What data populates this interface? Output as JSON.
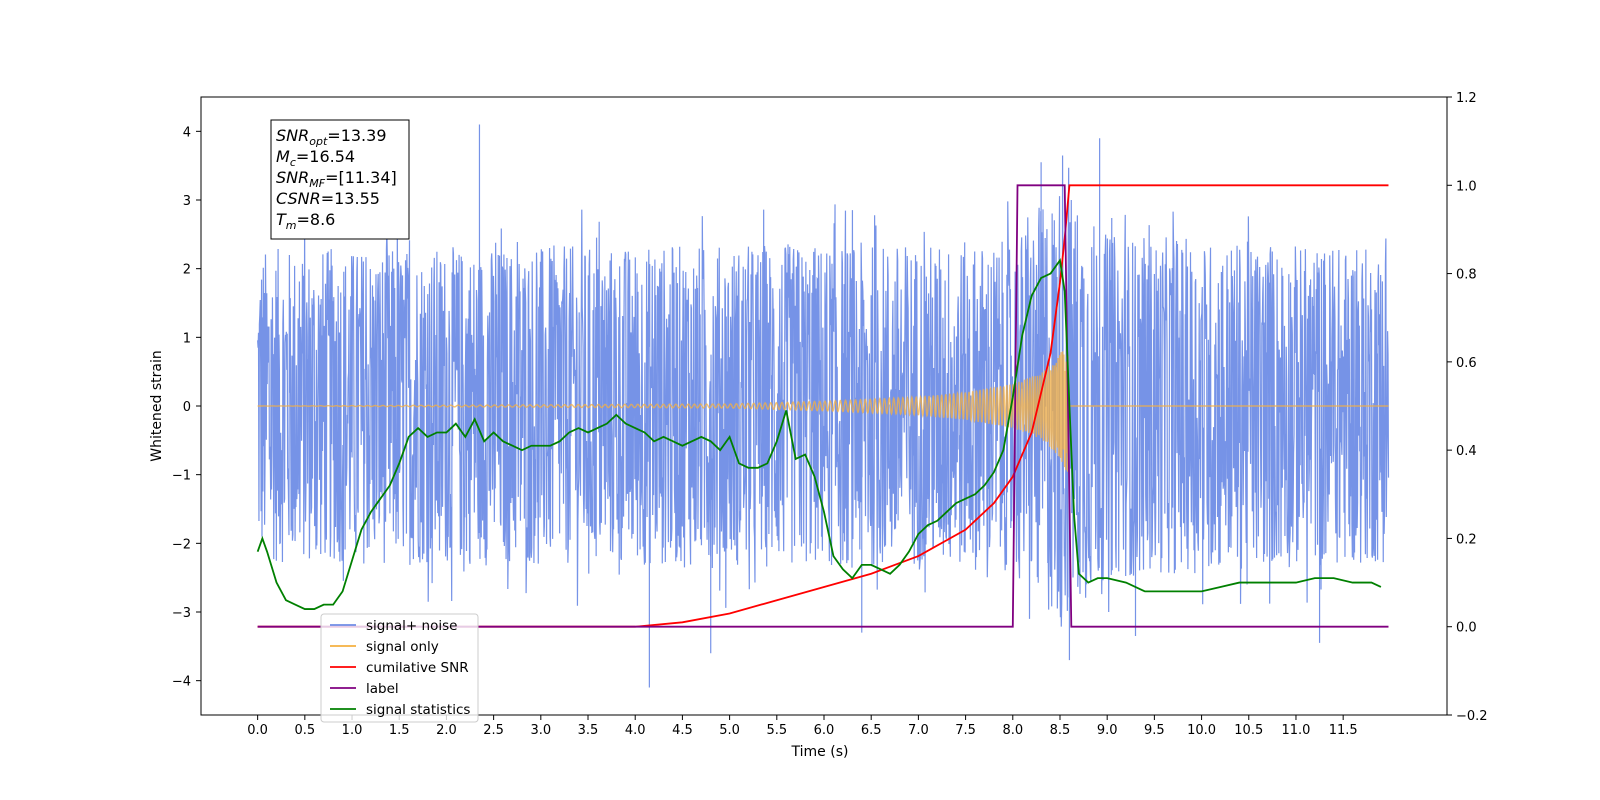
{
  "chart_data": {
    "type": "line",
    "xlabel": "Time (s)",
    "ylabel": "Whitened strain",
    "xlim": [
      -0.6,
      12.6
    ],
    "ylim": [
      -4.5,
      4.5
    ],
    "y2lim": [
      -0.2,
      1.2
    ],
    "x_ticks": [
      0.0,
      0.5,
      1.0,
      1.5,
      2.0,
      2.5,
      3.0,
      3.5,
      4.0,
      4.5,
      5.0,
      5.5,
      6.0,
      6.5,
      7.0,
      7.5,
      8.0,
      8.5,
      9.0,
      9.5,
      10.0,
      10.5,
      11.0,
      11.5
    ],
    "x_tick_labels": [
      "0.0",
      "0.5",
      "1.0",
      "1.5",
      "2.0",
      "2.5",
      "3.0",
      "3.5",
      "4.0",
      "4.5",
      "5.0",
      "5.5",
      "6.0",
      "6.5",
      "7.0",
      "7.5",
      "8.0",
      "8.5",
      "9.0",
      "9.5",
      "10.0",
      "10.5",
      "11.0",
      "11.5"
    ],
    "y_ticks": [
      -4,
      -3,
      -2,
      -1,
      0,
      1,
      2,
      3,
      4
    ],
    "y_tick_labels": [
      "−4",
      "−3",
      "−2",
      "−1",
      "0",
      "1",
      "2",
      "3",
      "4"
    ],
    "y2_ticks": [
      -0.2,
      0.0,
      0.2,
      0.4,
      0.6,
      0.8,
      1.0,
      1.2
    ],
    "y2_tick_labels": [
      "−0.2",
      "0.0",
      "0.2",
      "0.4",
      "0.6",
      "0.8",
      "1.0",
      "1.2"
    ],
    "legend_placement": "lower-left",
    "grid": false,
    "annotation": [
      {
        "label": "SNR",
        "sub": "opt",
        "value": "=13.39"
      },
      {
        "label": "M",
        "sub": "c",
        "value": "=16.54"
      },
      {
        "label": "SNR",
        "sub": "MF",
        "value": "=[11.34]"
      },
      {
        "label": "CSNR",
        "sub": "",
        "value": "=13.55"
      },
      {
        "label": "T",
        "sub": "m",
        "value": "=8.6"
      }
    ],
    "series": [
      {
        "name": "signal+ noise",
        "axis": "left",
        "color": "#6f8de6",
        "kind": "noise",
        "x_range": [
          0.0,
          11.98
        ],
        "amplitude_envelope": [
          [
            0.0,
            2.3
          ],
          [
            8.0,
            2.4
          ],
          [
            8.5,
            3.3
          ],
          [
            9.0,
            2.5
          ],
          [
            11.98,
            2.3
          ]
        ],
        "peaks": [
          [
            2.35,
            4.1
          ],
          [
            8.92,
            3.9
          ],
          [
            8.3,
            3.55
          ],
          [
            8.6,
            -3.7
          ],
          [
            4.15,
            -4.1
          ],
          [
            4.8,
            -3.6
          ],
          [
            11.25,
            -3.45
          ],
          [
            6.4,
            -3.3
          ],
          [
            9.3,
            -3.35
          ]
        ]
      },
      {
        "name": "signal only",
        "axis": "left",
        "color": "#f5b041",
        "kind": "chirp",
        "x_range": [
          0.0,
          11.98
        ],
        "merger_time": 8.6,
        "amplitude_points": [
          [
            0.0,
            0.0
          ],
          [
            5.0,
            0.03
          ],
          [
            6.0,
            0.07
          ],
          [
            7.0,
            0.13
          ],
          [
            7.5,
            0.2
          ],
          [
            8.0,
            0.32
          ],
          [
            8.3,
            0.48
          ],
          [
            8.5,
            0.75
          ],
          [
            8.58,
            1.0
          ],
          [
            8.6,
            0.0
          ]
        ]
      },
      {
        "name": "cumilative SNR",
        "axis": "right",
        "color": "#ff0000",
        "x": [
          0.0,
          3.0,
          4.0,
          4.5,
          5.0,
          5.5,
          6.0,
          6.5,
          7.0,
          7.5,
          7.8,
          8.0,
          8.2,
          8.4,
          8.5,
          8.55,
          8.6,
          11.98
        ],
        "values": [
          0.0,
          0.0,
          0.0,
          0.01,
          0.03,
          0.06,
          0.09,
          0.12,
          0.16,
          0.22,
          0.28,
          0.34,
          0.44,
          0.62,
          0.78,
          0.88,
          1.0,
          1.0
        ]
      },
      {
        "name": "label",
        "axis": "right",
        "color": "#800080",
        "x": [
          0.0,
          8.0,
          8.05,
          8.55,
          8.62,
          11.98
        ],
        "values": [
          0.0,
          0.0,
          1.0,
          1.0,
          0.0,
          0.0
        ]
      },
      {
        "name": "signal statistics",
        "axis": "right",
        "color": "#008000",
        "x": [
          0.0,
          0.05,
          0.1,
          0.2,
          0.3,
          0.4,
          0.5,
          0.6,
          0.7,
          0.8,
          0.9,
          1.0,
          1.1,
          1.2,
          1.3,
          1.4,
          1.5,
          1.6,
          1.7,
          1.8,
          1.9,
          2.0,
          2.1,
          2.2,
          2.3,
          2.4,
          2.5,
          2.6,
          2.7,
          2.8,
          2.9,
          3.0,
          3.1,
          3.2,
          3.3,
          3.4,
          3.5,
          3.6,
          3.7,
          3.8,
          3.9,
          4.0,
          4.1,
          4.2,
          4.3,
          4.4,
          4.5,
          4.6,
          4.7,
          4.8,
          4.9,
          5.0,
          5.1,
          5.2,
          5.3,
          5.4,
          5.5,
          5.6,
          5.7,
          5.8,
          5.9,
          6.0,
          6.1,
          6.2,
          6.3,
          6.4,
          6.5,
          6.6,
          6.7,
          6.8,
          6.9,
          7.0,
          7.1,
          7.2,
          7.3,
          7.4,
          7.5,
          7.6,
          7.7,
          7.8,
          7.9,
          8.0,
          8.1,
          8.2,
          8.3,
          8.4,
          8.5,
          8.55,
          8.6,
          8.65,
          8.7,
          8.8,
          8.9,
          9.0,
          9.2,
          9.4,
          9.6,
          9.8,
          10.0,
          10.2,
          10.4,
          10.6,
          10.8,
          11.0,
          11.2,
          11.4,
          11.6,
          11.8,
          11.9
        ],
        "values": [
          0.17,
          0.2,
          0.17,
          0.1,
          0.06,
          0.05,
          0.04,
          0.04,
          0.05,
          0.05,
          0.08,
          0.15,
          0.22,
          0.26,
          0.29,
          0.32,
          0.37,
          0.43,
          0.45,
          0.43,
          0.44,
          0.44,
          0.46,
          0.43,
          0.47,
          0.42,
          0.44,
          0.42,
          0.41,
          0.4,
          0.41,
          0.41,
          0.41,
          0.42,
          0.44,
          0.45,
          0.44,
          0.45,
          0.46,
          0.48,
          0.46,
          0.45,
          0.44,
          0.42,
          0.43,
          0.42,
          0.41,
          0.42,
          0.43,
          0.42,
          0.4,
          0.43,
          0.37,
          0.36,
          0.36,
          0.37,
          0.42,
          0.49,
          0.38,
          0.39,
          0.34,
          0.26,
          0.16,
          0.13,
          0.11,
          0.14,
          0.14,
          0.13,
          0.12,
          0.14,
          0.17,
          0.21,
          0.23,
          0.24,
          0.26,
          0.28,
          0.29,
          0.3,
          0.32,
          0.35,
          0.4,
          0.52,
          0.66,
          0.75,
          0.79,
          0.8,
          0.83,
          0.76,
          0.5,
          0.25,
          0.12,
          0.1,
          0.11,
          0.11,
          0.1,
          0.08,
          0.08,
          0.08,
          0.08,
          0.09,
          0.1,
          0.1,
          0.1,
          0.1,
          0.11,
          0.11,
          0.1,
          0.1,
          0.09
        ]
      }
    ],
    "legend_entries": [
      {
        "label": "signal+ noise",
        "color": "#6f8de6"
      },
      {
        "label": "signal only",
        "color": "#f5b041"
      },
      {
        "label": "cumilative SNR",
        "color": "#ff0000"
      },
      {
        "label": "label",
        "color": "#800080"
      },
      {
        "label": "signal statistics",
        "color": "#008000"
      }
    ]
  }
}
